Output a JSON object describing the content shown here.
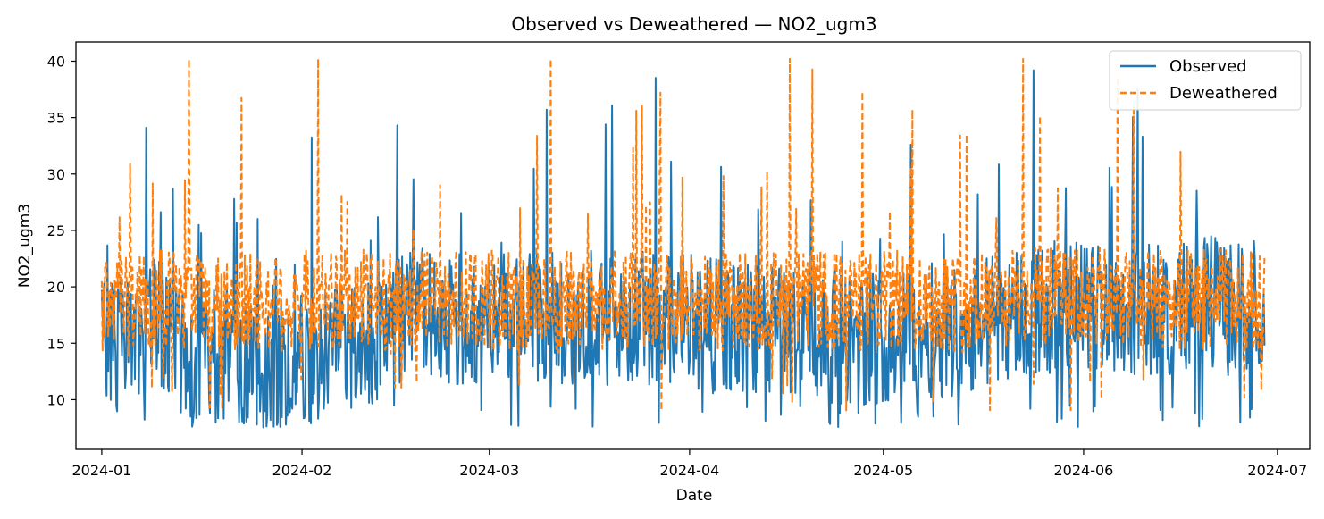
{
  "chart_data": {
    "type": "line",
    "title": "Observed vs Deweathered — NO2_ugm3",
    "xlabel": "Date",
    "ylabel": "NO2_ugm3",
    "x_ticks": [
      "2024-01",
      "2024-02",
      "2024-03",
      "2024-04",
      "2024-05",
      "2024-06",
      "2024-07"
    ],
    "y_ticks": [
      10,
      15,
      20,
      25,
      30,
      35,
      40
    ],
    "xlim": [
      "2023-12-28",
      "2024-07-06"
    ],
    "ylim": [
      5.6,
      41.7
    ],
    "grid": false,
    "legend": "upper-right",
    "series": [
      {
        "name": "Observed",
        "color": "#1f77b4",
        "style": "solid",
        "x": [
          "2024-01-01",
          "2024-01-05",
          "2024-01-10",
          "2024-01-15",
          "2024-01-20",
          "2024-01-25",
          "2024-02-01",
          "2024-02-05",
          "2024-02-10",
          "2024-02-15",
          "2024-02-20",
          "2024-02-25",
          "2024-03-01",
          "2024-03-05",
          "2024-03-10",
          "2024-03-15",
          "2024-03-20",
          "2024-03-25",
          "2024-04-01",
          "2024-04-05",
          "2024-04-10",
          "2024-04-15",
          "2024-04-20",
          "2024-04-25",
          "2024-05-01",
          "2024-05-05",
          "2024-05-10",
          "2024-05-15",
          "2024-05-20",
          "2024-05-25",
          "2024-06-01",
          "2024-06-05",
          "2024-06-10",
          "2024-06-15",
          "2024-06-20",
          "2024-06-25",
          "2024-06-29"
        ],
        "y": [
          16.0,
          14.5,
          17.0,
          13.5,
          14.0,
          13.0,
          13.8,
          14.2,
          14.0,
          16.5,
          17.5,
          17.0,
          16.8,
          17.2,
          17.0,
          17.4,
          17.0,
          17.3,
          16.9,
          16.5,
          16.0,
          16.2,
          15.8,
          15.5,
          15.5,
          16.0,
          16.2,
          16.5,
          17.8,
          18.0,
          18.2,
          18.5,
          17.8,
          18.2,
          18.5,
          18.0,
          18.5
        ]
      },
      {
        "name": "Deweathered",
        "color": "#ff7f0e",
        "style": "dashed",
        "x": [
          "2024-01-01",
          "2024-01-05",
          "2024-01-10",
          "2024-01-15",
          "2024-01-20",
          "2024-01-25",
          "2024-02-01",
          "2024-02-05",
          "2024-02-10",
          "2024-02-15",
          "2024-02-20",
          "2024-02-25",
          "2024-03-01",
          "2024-03-05",
          "2024-03-10",
          "2024-03-15",
          "2024-03-20",
          "2024-03-25",
          "2024-04-01",
          "2024-04-05",
          "2024-04-10",
          "2024-04-15",
          "2024-04-20",
          "2024-04-25",
          "2024-05-01",
          "2024-05-05",
          "2024-05-10",
          "2024-05-15",
          "2024-05-20",
          "2024-05-25",
          "2024-06-01",
          "2024-06-05",
          "2024-06-10",
          "2024-06-15",
          "2024-06-20",
          "2024-06-25",
          "2024-06-29"
        ],
        "y": [
          18.0,
          18.2,
          19.0,
          18.5,
          18.8,
          18.6,
          18.7,
          18.9,
          18.8,
          18.5,
          18.9,
          19.0,
          18.7,
          18.9,
          18.6,
          18.8,
          18.9,
          18.7,
          18.8,
          18.6,
          18.9,
          18.7,
          18.8,
          18.6,
          18.7,
          18.9,
          18.8,
          18.6,
          19.0,
          19.1,
          18.9,
          19.0,
          18.8,
          18.9,
          19.0,
          18.8,
          18.9
        ]
      }
    ]
  }
}
